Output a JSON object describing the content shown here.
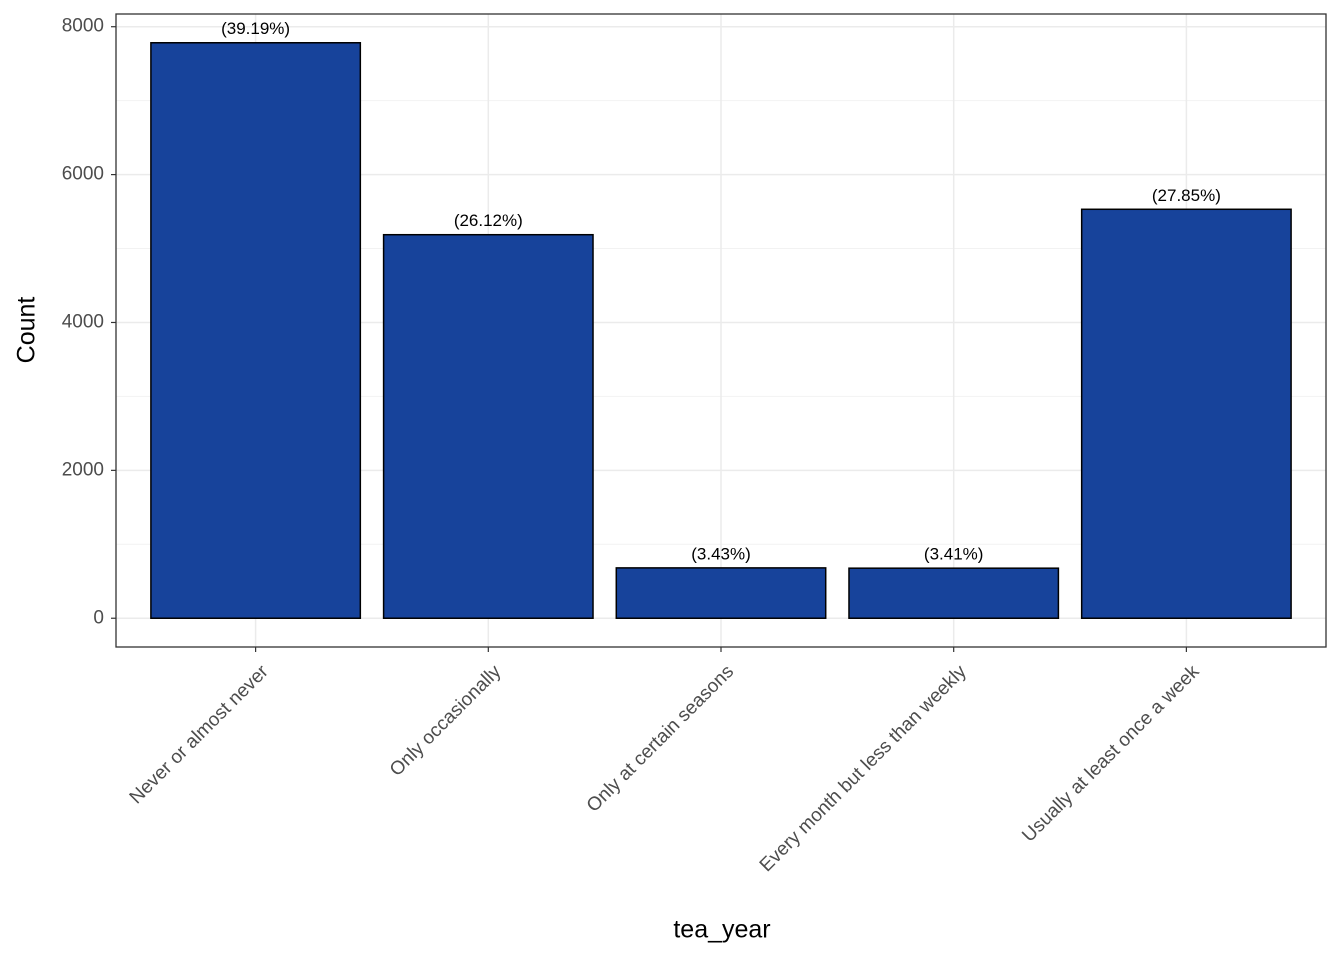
{
  "chart_data": {
    "type": "bar",
    "x_label": "tea_year",
    "y_label": "Count",
    "categories": [
      "Never or almost never",
      "Only occasionally",
      "Only at certain seasons",
      "Every month but less than weekly",
      "Usually at least once a week"
    ],
    "values": [
      7783,
      5187,
      681,
      677,
      5531
    ],
    "bar_labels": [
      "(39.19%)",
      "(26.12%)",
      "(3.43%)",
      "(3.41%)",
      "(27.85%)"
    ],
    "color": "#17439b",
    "ylim": [
      -389,
      8172
    ],
    "yticks": [
      0,
      2000,
      4000,
      6000,
      8000
    ],
    "minor_yticks": [
      1000,
      3000,
      5000,
      7000
    ],
    "grid": true
  }
}
